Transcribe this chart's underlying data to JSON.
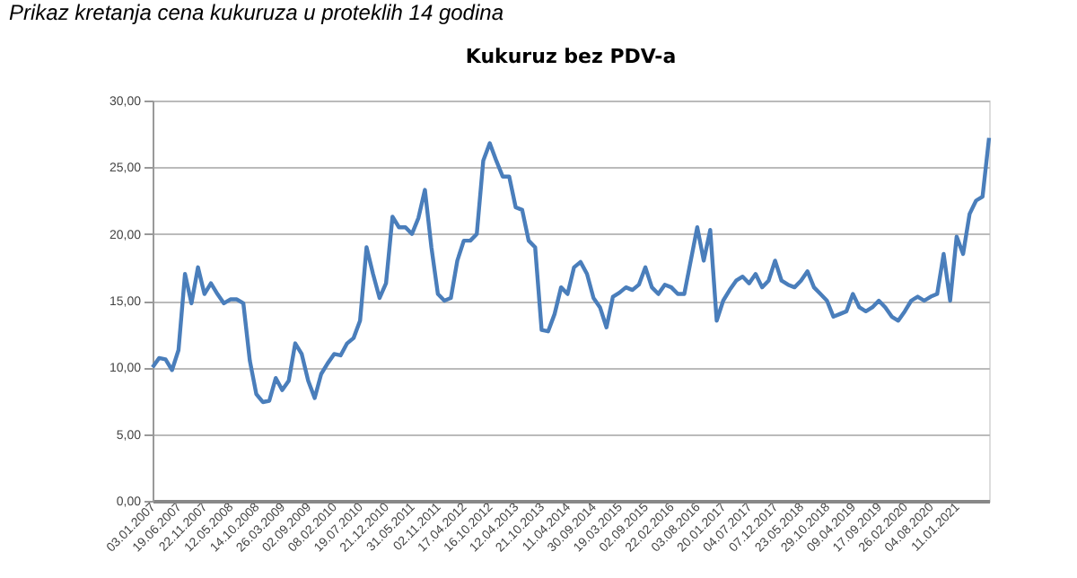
{
  "chart_data": {
    "type": "line",
    "title": "Kukuruz bez PDV-a",
    "annotations": [
      "Prikaz kretanja cena kukuruza u proteklih 14 godina"
    ],
    "categories": [
      "03.01.2007",
      null,
      null,
      null,
      "19.06.2007",
      null,
      null,
      null,
      "22.11.2007",
      null,
      null,
      null,
      "12.05.2008",
      null,
      null,
      null,
      "14.10.2008",
      null,
      null,
      null,
      "26.03.2009",
      null,
      null,
      null,
      "02.09.2009",
      null,
      null,
      null,
      "08.02.2010",
      null,
      null,
      null,
      "19.07.2010",
      null,
      null,
      null,
      "21.12.2010",
      null,
      null,
      null,
      "31.05.2011",
      null,
      null,
      null,
      "02.11.2011",
      null,
      null,
      null,
      "17.04.2012",
      null,
      null,
      null,
      "16.10.2012",
      null,
      null,
      null,
      "12.04.2013",
      null,
      null,
      null,
      "21.10.2013",
      null,
      null,
      null,
      "11.04.2014",
      null,
      null,
      null,
      "30.09.2014",
      null,
      null,
      null,
      "19.03.2015",
      null,
      null,
      null,
      "02.09.2015",
      null,
      null,
      null,
      "22.02.2016",
      null,
      null,
      null,
      "03.08.2016",
      null,
      null,
      null,
      "20.01.2017",
      null,
      null,
      null,
      "04.07.2017",
      null,
      null,
      null,
      "07.12.2017",
      null,
      null,
      null,
      "23.05.2018",
      null,
      null,
      null,
      "29.10.2018",
      null,
      null,
      null,
      "09.04.2019",
      null,
      null,
      null,
      "17.09.2019",
      null,
      null,
      null,
      "26.02.2020",
      null,
      null,
      null,
      "04.08.2020",
      null,
      null,
      null,
      "11.01.2021",
      null,
      null,
      null,
      null,
      null
    ],
    "series": [
      {
        "color": "#4a7ebb",
        "values": [
          10.0,
          10.7,
          10.6,
          9.8,
          11.3,
          17.0,
          14.8,
          17.5,
          15.5,
          16.3,
          15.5,
          14.8,
          15.1,
          15.1,
          14.8,
          10.5,
          8.0,
          7.4,
          7.5,
          9.2,
          8.3,
          9.0,
          11.8,
          11.0,
          9.0,
          7.7,
          9.5,
          10.3,
          11.0,
          10.9,
          11.8,
          12.2,
          13.5,
          19.0,
          17.0,
          15.2,
          16.3,
          21.3,
          20.5,
          20.5,
          20.0,
          21.2,
          23.3,
          19.0,
          15.5,
          15.0,
          15.2,
          18.0,
          19.5,
          19.5,
          20.0,
          25.5,
          26.8,
          25.5,
          24.3,
          24.3,
          22.0,
          21.8,
          19.5,
          19.0,
          12.8,
          12.7,
          14.0,
          16.0,
          15.5,
          17.5,
          17.9,
          17.0,
          15.2,
          14.5,
          13.0,
          15.3,
          15.6,
          16.0,
          15.8,
          16.2,
          17.5,
          16.0,
          15.5,
          16.2,
          16.0,
          15.5,
          15.5,
          18.0,
          20.5,
          18.0,
          20.3,
          13.5,
          15.0,
          15.8,
          16.5,
          16.8,
          16.3,
          17.0,
          16.0,
          16.5,
          18.0,
          16.5,
          16.2,
          16.0,
          16.5,
          17.2,
          16.0,
          15.5,
          15.0,
          13.8,
          14.0,
          14.2,
          15.5,
          14.5,
          14.2,
          14.5,
          15.0,
          14.5,
          13.8,
          13.5,
          14.2,
          15.0,
          15.3,
          15.0,
          15.3,
          15.5,
          18.5,
          15.0,
          19.8,
          18.5,
          21.5,
          22.5,
          22.8,
          27.2
        ]
      }
    ],
    "ylim": [
      0,
      30
    ],
    "yticks": [
      {
        "value": 0,
        "label": "0,00"
      },
      {
        "value": 5,
        "label": "5,00"
      },
      {
        "value": 10,
        "label": "10,00"
      },
      {
        "value": 15,
        "label": "15,00"
      },
      {
        "value": 20,
        "label": "20,00"
      },
      {
        "value": 25,
        "label": "25,00"
      },
      {
        "value": 30,
        "label": "30,00"
      }
    ],
    "grid": "y",
    "legend": false,
    "marker": "none",
    "line_style": "solid"
  }
}
